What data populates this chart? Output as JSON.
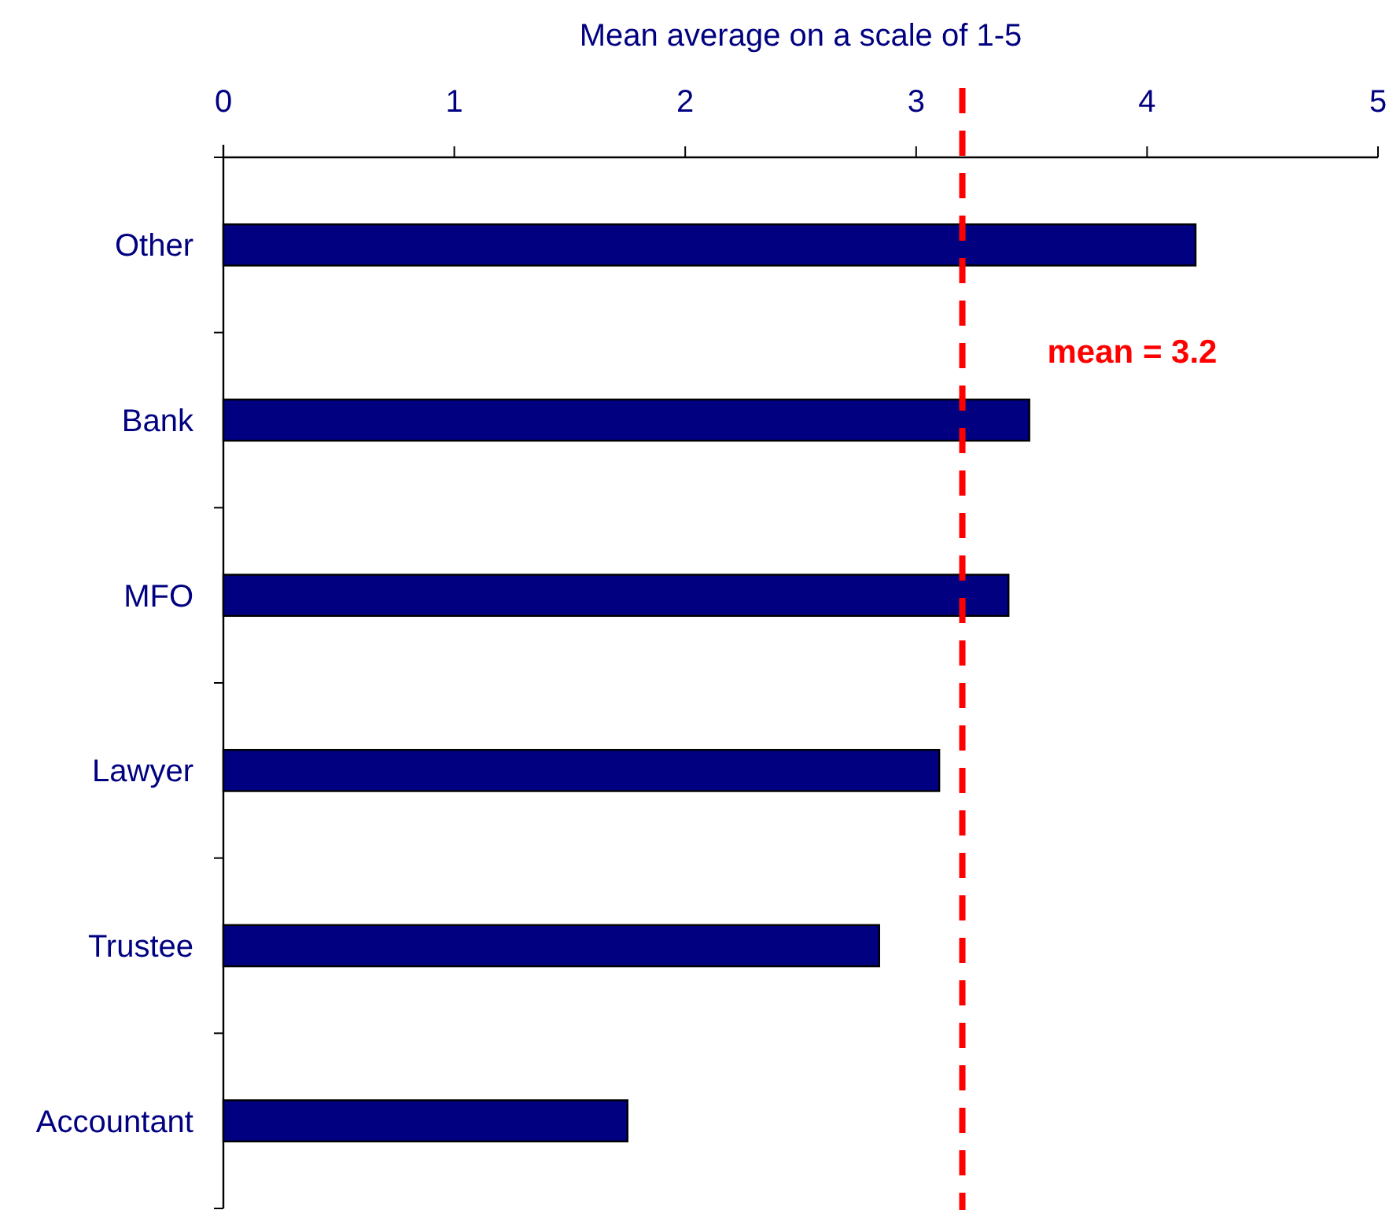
{
  "chart_data": {
    "type": "bar",
    "orientation": "horizontal",
    "xlabel": "Mean average on a scale of 1-5",
    "categories": [
      "Other",
      "Bank",
      "MFO",
      "Lawyer",
      "Trustee",
      "Accountant"
    ],
    "values": [
      4.21,
      3.49,
      3.4,
      3.1,
      2.84,
      1.75
    ],
    "color": "#000080",
    "xlim": [
      0,
      5
    ],
    "xticks": [
      0,
      1,
      2,
      3,
      4,
      5
    ],
    "ref_lines": [
      {
        "axis": "x",
        "value": 3.2,
        "label": "mean = 3.2",
        "color": "#ff0000",
        "line_style": "dashed"
      }
    ]
  }
}
